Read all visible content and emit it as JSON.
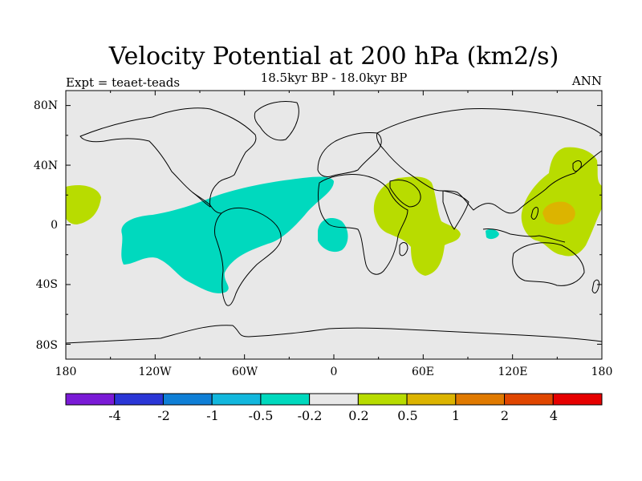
{
  "title": "Velocity Potential at 200 hPa (km2/s)",
  "subtitle": "18.5kyr BP - 18.0kyr BP",
  "expt_label": "Expt = teaet-teads",
  "season_label": "ANN",
  "projection": "cylindrical-equidistant",
  "lon_range": [
    -180,
    180
  ],
  "lat_range": [
    -90,
    90
  ],
  "lon_ticks": [
    "180",
    "120W",
    "60W",
    "0",
    "60E",
    "120E",
    "180"
  ],
  "lat_ticks": [
    "80N",
    "40N",
    "0",
    "40S",
    "80S"
  ],
  "colorbar": {
    "labels": [
      "-4",
      "-2",
      "-1",
      "-0.5",
      "-0.2",
      "0.2",
      "0.5",
      "1",
      "2",
      "4"
    ],
    "colors": [
      "#7a1ad6",
      "#2a36d6",
      "#0f7fd6",
      "#12b7dd",
      "#00d9be",
      "#e8e8e8",
      "#b8dc00",
      "#dcb400",
      "#e07a00",
      "#e04600",
      "#e60000"
    ]
  },
  "colors": {
    "background": "#e8e8e8",
    "negative_shade": "#00d9be",
    "positive_shade": "#b8dc00",
    "strong_positive_shade": "#dcb400",
    "coastline": "#000000"
  }
}
